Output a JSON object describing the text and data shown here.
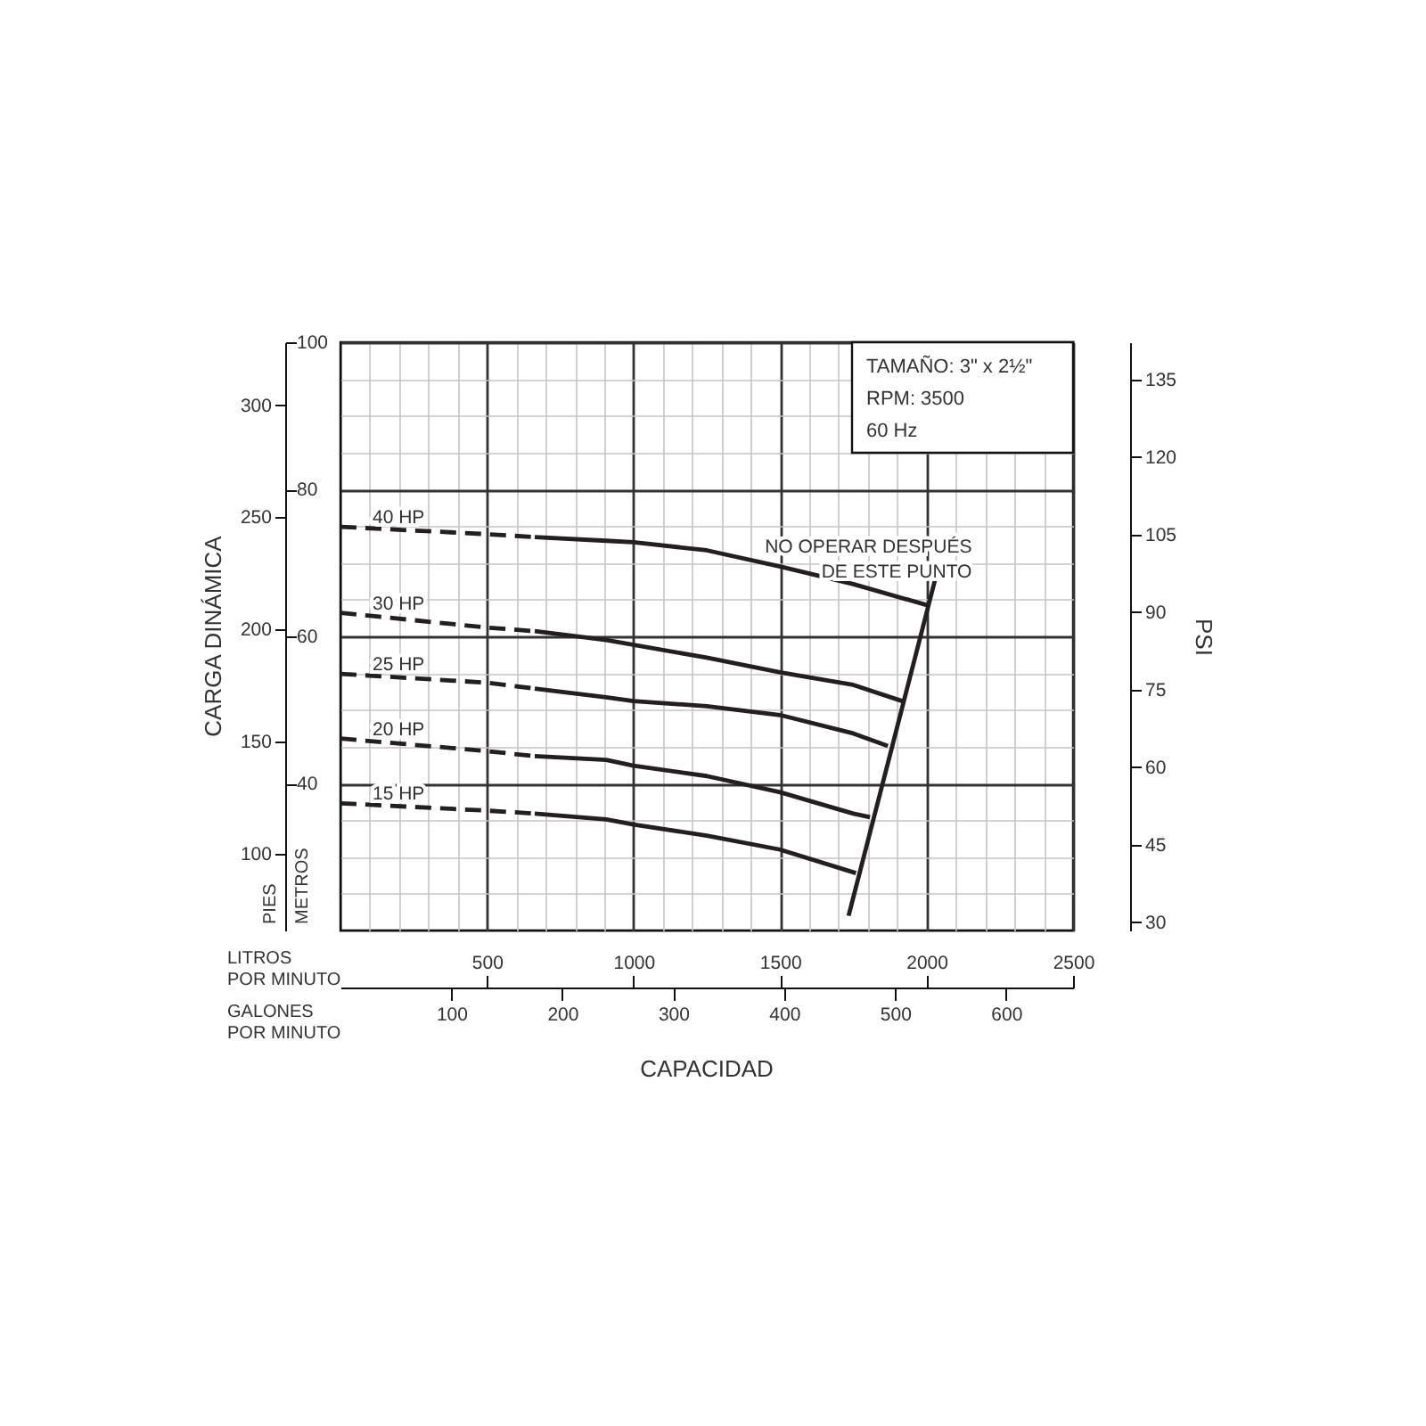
{
  "chart_data": {
    "type": "line",
    "xlabel": "LITROS POR MINUTO",
    "ylabel": "METROS",
    "x2label": "GALONES POR MINUTO",
    "y2label": "PIES",
    "y3label": "PSI",
    "xlim": [
      0,
      2500
    ],
    "xticks": [
      {
        "value": 100,
        "label": null
      },
      {
        "value": 200,
        "label": null
      },
      {
        "value": 300,
        "label": null
      },
      {
        "value": 400,
        "label": null
      },
      500,
      {
        "value": 600,
        "label": null
      },
      {
        "value": 700,
        "label": null
      },
      {
        "value": 800,
        "label": null
      },
      {
        "value": 900,
        "label": null
      },
      1000,
      {
        "value": 1100,
        "label": null
      },
      {
        "value": 1200,
        "label": null
      },
      {
        "value": 1300,
        "label": null
      },
      {
        "value": 1400,
        "label": null
      },
      1500,
      {
        "value": 1600,
        "label": null
      },
      {
        "value": 1700,
        "label": null
      },
      {
        "value": 1800,
        "label": null
      },
      {
        "value": 1900,
        "label": null
      },
      2000,
      {
        "value": 2100,
        "label": null
      },
      {
        "value": 2200,
        "label": null
      },
      {
        "value": 2300,
        "label": null
      },
      {
        "value": 2400,
        "label": null
      },
      2500
    ],
    "ylim": [
      20,
      100
    ],
    "yticks": [
      {
        "value": 25,
        "label": null
      },
      {
        "value": 30,
        "label": null
      },
      {
        "value": 35,
        "label": null
      },
      40,
      {
        "value": 45,
        "label": null
      },
      {
        "value": 50,
        "label": null
      },
      {
        "value": 55,
        "label": null
      },
      60,
      {
        "value": 65,
        "label": null
      },
      {
        "value": 70,
        "label": null
      },
      {
        "value": 75,
        "label": null
      },
      80,
      {
        "value": 85,
        "label": null
      },
      {
        "value": 90,
        "label": null
      },
      {
        "value": 95,
        "label": null
      },
      100
    ],
    "x2lim": [
      0,
      660.4
    ],
    "x2ticks": [
      100,
      200,
      300,
      400,
      500,
      600
    ],
    "y2lim": [
      65.6,
      328.1
    ],
    "y2ticks": [
      100,
      150,
      200,
      250,
      300
    ],
    "y3lim": [
      28.4,
      142.2
    ],
    "y3ticks": [
      30,
      45,
      60,
      75,
      90,
      105,
      120,
      135
    ],
    "grid": true,
    "series": [
      {
        "name": "40 HP",
        "color": "#231f20",
        "line_style": "dashed",
        "x": [
          0,
          500,
          663
        ],
        "values": [
          74.9,
          73.9,
          73.5
        ]
      },
      {
        "color": "#231f20",
        "line_style": "solid",
        "x": [
          663,
          907,
          1000,
          1250,
          1500,
          1750,
          2006
        ],
        "values": [
          73.5,
          73.0,
          72.8,
          71.7,
          69.5,
          67.1,
          64.2
        ]
      },
      {
        "name": "30 HP",
        "color": "#231f20",
        "line_style": "dashed",
        "x": [
          0,
          500,
          663
        ],
        "values": [
          63.2,
          61.2,
          60.7
        ]
      },
      {
        "color": "#231f20",
        "line_style": "solid",
        "x": [
          663,
          907,
          1250,
          1500,
          1750,
          1917
        ],
        "values": [
          60.7,
          59.5,
          57.1,
          55.1,
          53.4,
          51.2
        ]
      },
      {
        "name": "25 HP",
        "color": "#231f20",
        "line_style": "dashed",
        "x": [
          0,
          500,
          663
        ],
        "values": [
          54.9,
          53.7,
          52.9
        ]
      },
      {
        "color": "#231f20",
        "line_style": "solid",
        "x": [
          663,
          907,
          1000,
          1250,
          1500,
          1750,
          1868
        ],
        "values": [
          52.9,
          51.7,
          51.2,
          50.5,
          49.3,
          46.8,
          45.1
        ]
      },
      {
        "name": "20 HP",
        "color": "#231f20",
        "line_style": "dashed",
        "x": [
          0,
          500,
          663
        ],
        "values": [
          46.1,
          44.4,
          43.7
        ]
      },
      {
        "color": "#231f20",
        "line_style": "solid",
        "x": [
          663,
          907,
          1000,
          1250,
          1500,
          1750,
          1807
        ],
        "values": [
          43.7,
          43.2,
          42.4,
          41.0,
          38.8,
          35.9,
          35.4
        ]
      },
      {
        "name": "15 HP",
        "color": "#231f20",
        "line_style": "dashed",
        "x": [
          0,
          500,
          663
        ],
        "values": [
          37.3,
          36.3,
          35.9
        ]
      },
      {
        "color": "#231f20",
        "line_style": "solid",
        "x": [
          663,
          907,
          1000,
          1250,
          1500,
          1759
        ],
        "values": [
          35.9,
          35.1,
          34.4,
          32.9,
          31.0,
          27.8
        ]
      },
      {
        "color": "#231f20",
        "line_style": "solid",
        "x": [
          1734,
          2033
        ],
        "values": [
          22.0,
          68.3
        ]
      }
    ],
    "annotations": [
      "CARGA DINÁMICA",
      "CAPACIDAD",
      "TAMAÑO: 3\" x 2½\"",
      "RPM: 3500",
      "60 Hz",
      {
        "text": "NO OPERAR DESPUÉS\nDE ESTE PUNTO",
        "x": 2033,
        "y": 68.3
      }
    ]
  }
}
